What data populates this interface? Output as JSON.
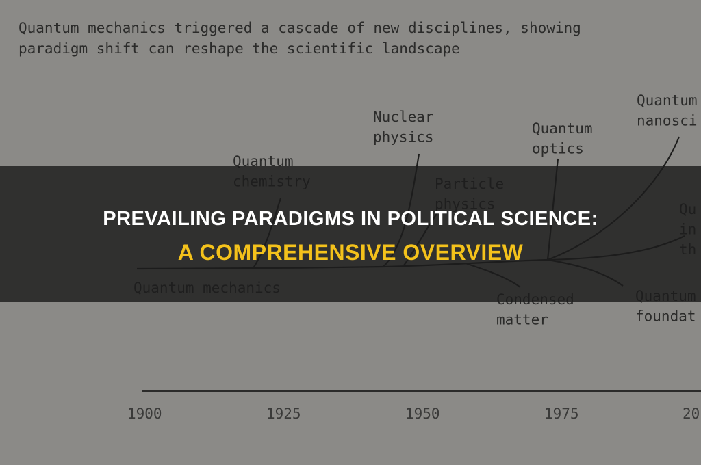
{
  "diagram": {
    "caption": [
      "Quantum mechanics triggered a cascade of new disciplines, showing",
      "paradigm shift can reshape the scientific landscape"
    ],
    "nodes": [
      {
        "lines": [
          "Quantum mechanics"
        ]
      },
      {
        "lines": [
          "Quantum",
          "chemistry"
        ]
      },
      {
        "lines": [
          "Nuclear",
          "physics"
        ]
      },
      {
        "lines": [
          "Particle",
          "physics"
        ]
      },
      {
        "lines": [
          "Quantum",
          "optics"
        ]
      },
      {
        "lines": [
          "Quantum",
          "nanosci"
        ]
      },
      {
        "lines": [
          "Qu",
          "in",
          "th"
        ]
      },
      {
        "lines": [
          "Condensed",
          "matter"
        ]
      },
      {
        "lines": [
          "Quantum",
          "foundat"
        ]
      }
    ],
    "axis": [
      "1900",
      "1925",
      "1950",
      "1975",
      "20"
    ]
  },
  "banner": {
    "title": "PREVAILING PARADIGMS IN POLITICAL SCIENCE:",
    "subtitle": "A COMPREHENSIVE OVERVIEW"
  }
}
